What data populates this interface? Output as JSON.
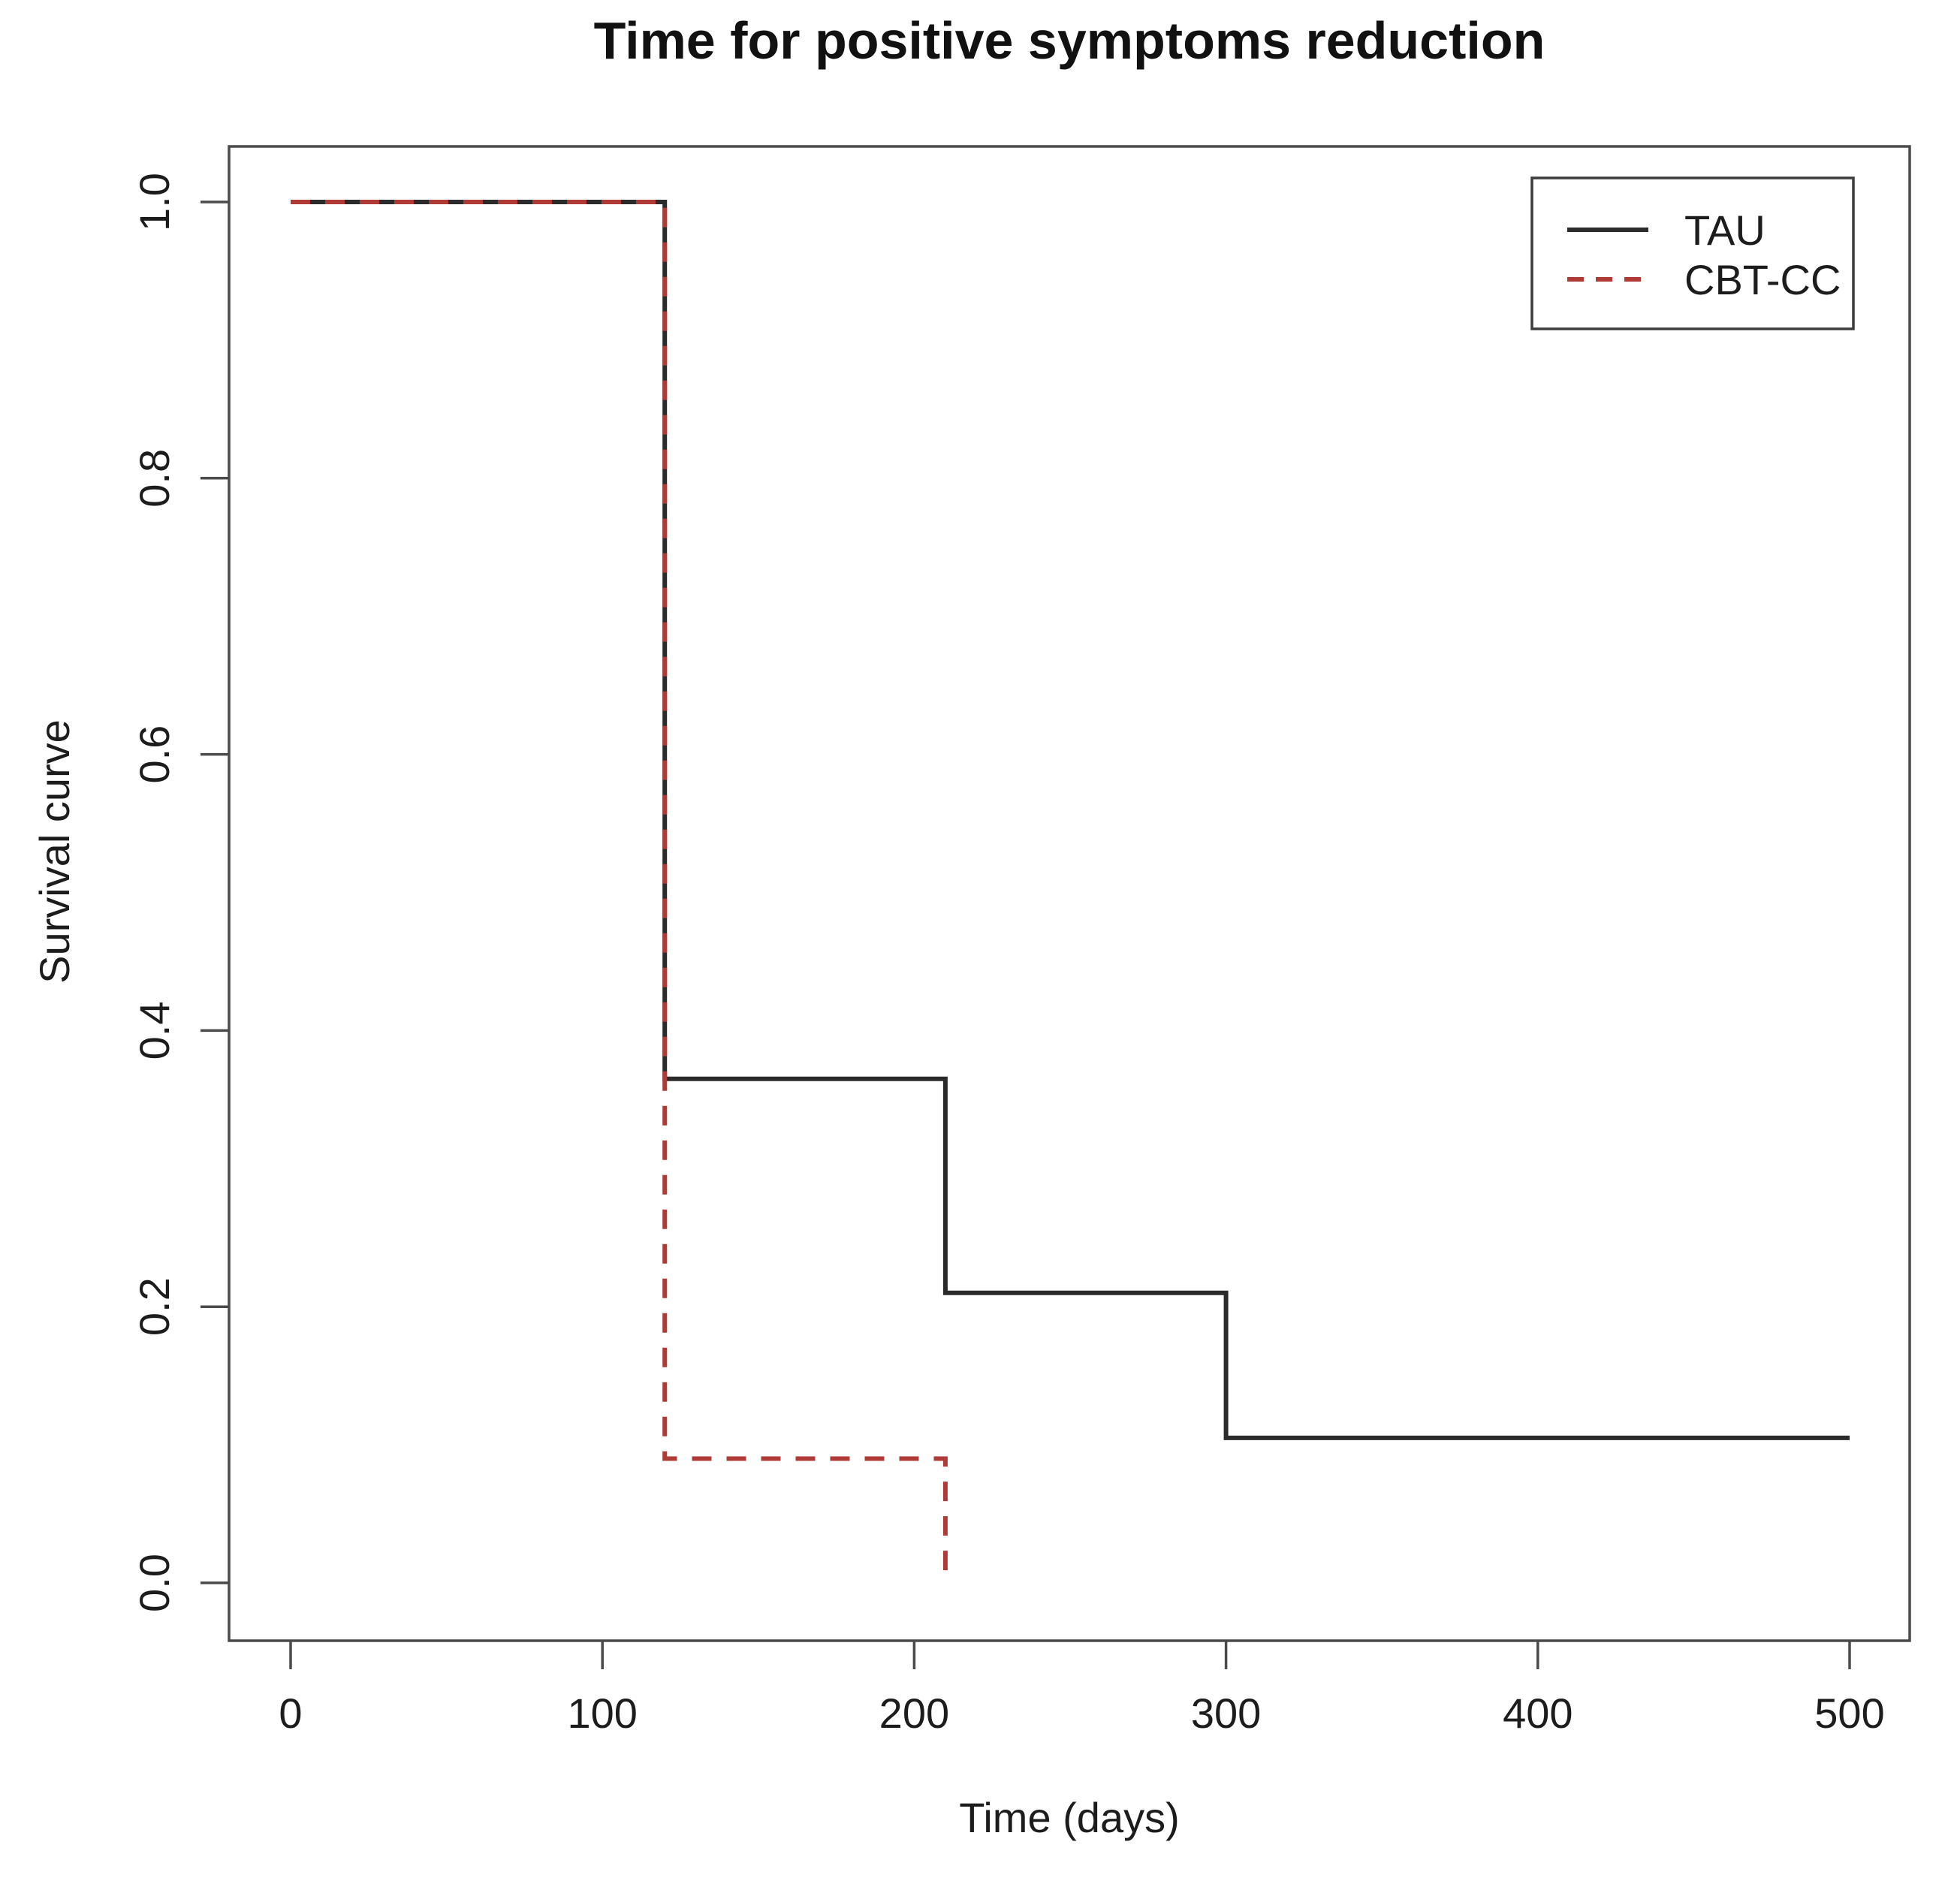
{
  "chart_data": {
    "type": "line",
    "variant": "kaplan-meier-step",
    "title": "Time for positive symptoms reduction",
    "xlabel": "Time (days)",
    "ylabel": "Survival curve",
    "xlim": [
      0,
      500
    ],
    "ylim": [
      0.0,
      1.0
    ],
    "x_ticks": [
      0,
      100,
      200,
      300,
      400,
      500
    ],
    "y_tick_labels": [
      "0.0",
      "0.2",
      "0.4",
      "0.6",
      "0.8",
      "1.0"
    ],
    "grid": false,
    "frame_color": "#4a4a4a",
    "text_color": "#1c1c1c",
    "legend": {
      "position": "top-right",
      "entries": [
        {
          "label": "TAU",
          "color": "#2b2b2b",
          "style": "solid"
        },
        {
          "label": "CBT-CC",
          "color": "#b03a36",
          "style": "dashed"
        }
      ]
    },
    "series": [
      {
        "name": "TAU",
        "color": "#2b2b2b",
        "style": "solid",
        "points": [
          [
            0,
            1.0
          ],
          [
            120,
            1.0
          ],
          [
            120,
            0.365
          ],
          [
            210,
            0.365
          ],
          [
            210,
            0.21
          ],
          [
            300,
            0.21
          ],
          [
            300,
            0.105
          ],
          [
            500,
            0.105
          ]
        ]
      },
      {
        "name": "CBT-CC",
        "color": "#b03a36",
        "style": "dashed",
        "points": [
          [
            0,
            1.0
          ],
          [
            120,
            1.0
          ],
          [
            120,
            0.09
          ],
          [
            210,
            0.09
          ],
          [
            210,
            0.0
          ]
        ]
      }
    ]
  }
}
